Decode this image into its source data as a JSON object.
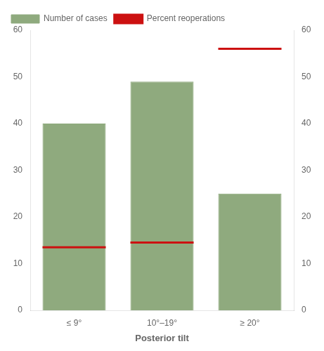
{
  "chart_data": {
    "type": "bar",
    "categories": [
      "≤ 9°",
      "10°–19°",
      "≥ 20°"
    ],
    "series": [
      {
        "name": "Number of cases",
        "type": "bar",
        "color": "#8faa7e",
        "values": [
          40,
          49,
          25
        ]
      },
      {
        "name": "Percent reoperations",
        "type": "line",
        "line_style": "none",
        "marker": "hline",
        "color": "#cc1111",
        "values": [
          13.5,
          14.5,
          56.0
        ]
      }
    ],
    "xlabel": "Posterior tilt",
    "ylim": [
      0,
      60
    ],
    "yticks": [
      0,
      10,
      20,
      30,
      40,
      50,
      60
    ],
    "y2lim": [
      0,
      60
    ],
    "y2ticks": [
      0,
      10,
      20,
      30,
      40,
      50,
      60
    ],
    "grid": false,
    "legend": "upper left"
  }
}
